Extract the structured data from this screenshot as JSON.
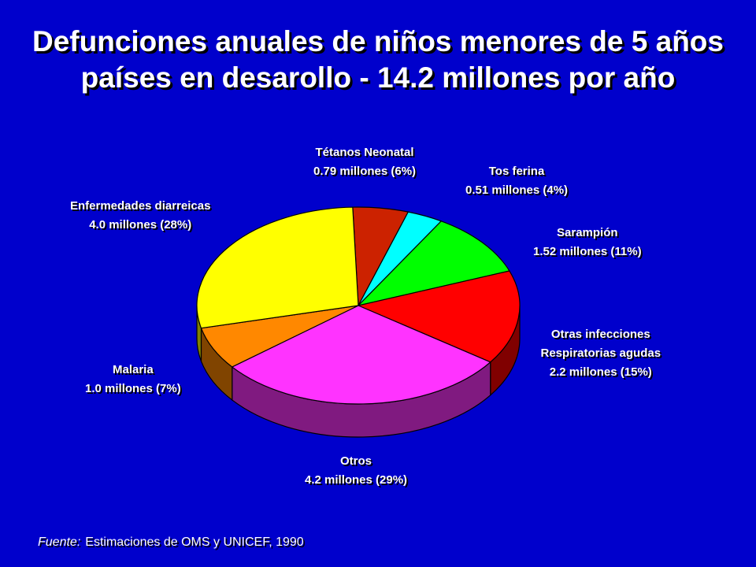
{
  "title_lines": [
    "Defunciones anuales de niños menores de 5 años",
    "países en desarollo - 14.2 millones por año"
  ],
  "source": {
    "label": "Fuente:",
    "text": "Estimaciones de OMS y UNICEF, 1990"
  },
  "chart_data": {
    "type": "pie",
    "title": "Defunciones anuales de niños menores de 5 años países en desarollo - 14.2 millones por año",
    "slices": [
      {
        "name": "Tétanos Neonatal",
        "value": 0.79,
        "percent": 6,
        "color": "#cc2200",
        "label_lines": [
          "Tétanos Neonatal",
          "0.79 millones (6%)"
        ]
      },
      {
        "name": "Tos ferina",
        "value": 0.51,
        "percent": 4,
        "color": "#00ffff",
        "label_lines": [
          "Tos ferina",
          "0.51 millones (4%)"
        ]
      },
      {
        "name": "Sarampión",
        "value": 1.52,
        "percent": 11,
        "color": "#00ff00",
        "label_lines": [
          "Sarampión",
          "1.52 millones (11%)"
        ]
      },
      {
        "name": "Otras infecciones Respiratorias agudas",
        "value": 2.2,
        "percent": 15,
        "color": "#ff0000",
        "label_lines": [
          "Otras infecciones",
          "Respiratorias agudas",
          "2.2 millones (15%)"
        ]
      },
      {
        "name": "Otros",
        "value": 4.2,
        "percent": 29,
        "color": "#ff33ff",
        "label_lines": [
          "Otros",
          "4.2 millones (29%)"
        ]
      },
      {
        "name": "Malaria",
        "value": 1.0,
        "percent": 7,
        "color": "#ff8800",
        "label_lines": [
          "Malaria",
          "1.0 millones (7%)"
        ]
      },
      {
        "name": "Enfermedades diarreicas",
        "value": 4.0,
        "percent": 28,
        "color": "#ffff00",
        "label_lines": [
          "Enfermedades diarreicas",
          "4.0 millones (28%)"
        ]
      }
    ],
    "legend": "none"
  }
}
